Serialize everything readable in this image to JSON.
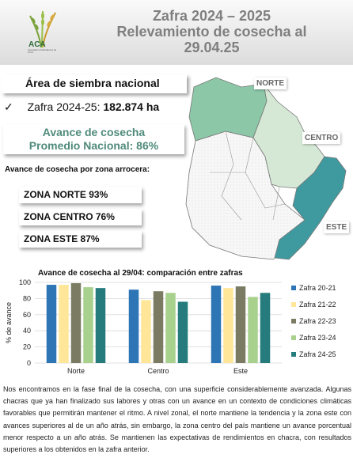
{
  "header": {
    "title_lines": [
      "Zafra 2024 – 2025",
      "Relevamiento de cosecha al",
      "29.04.25"
    ],
    "logo_text": "ACA",
    "logo_sub": "Asociación Cultivadores de Arroz"
  },
  "area": {
    "label": "Área de siembra nacional",
    "check_icon": "✓",
    "zafra_label": "Zafra 2024-25: ",
    "zafra_value": "182.874 ha"
  },
  "avance": {
    "line1": "Avance de cosecha",
    "line2": "Promedio Nacional: 86%"
  },
  "zonas": {
    "title": "Avance de cosecha por zona arrocera:",
    "items": [
      {
        "label": "ZONA NORTE 93%"
      },
      {
        "label": "ZONA CENTRO 76%"
      },
      {
        "label": "ZONA ESTE 87%"
      }
    ]
  },
  "map": {
    "labels": {
      "norte": "NORTE",
      "centro": "CENTRO",
      "este": "ESTE"
    },
    "colors": {
      "norte": "#8cc7a8",
      "centro": "#d5e8d6",
      "este": "#3f9aa0",
      "other": "#f4f4f4",
      "border": "#7a7a7a"
    }
  },
  "chart_data": {
    "type": "bar",
    "title": "Avance de cosecha al 29/04: comparación entre zafras",
    "ylabel": "% de avance",
    "xlabel": "",
    "ylim": [
      0,
      100
    ],
    "yticks": [
      0,
      20,
      40,
      60,
      80,
      100
    ],
    "grid": true,
    "legend_position": "right",
    "categories": [
      "Norte",
      "Centro",
      "Este"
    ],
    "series": [
      {
        "name": "Zafra 20-21",
        "color": "#2e75b6",
        "values": [
          97,
          91,
          96
        ]
      },
      {
        "name": "Zafra 21-22",
        "color": "#ffe699",
        "values": [
          97,
          78,
          93
        ]
      },
      {
        "name": "Zafra 22-23",
        "color": "#7b7b63",
        "values": [
          99,
          89,
          95
        ]
      },
      {
        "name": "Zafra 23-24",
        "color": "#a9d18e",
        "values": [
          94,
          87,
          82
        ]
      },
      {
        "name": "Zafra 24-25",
        "color": "#267c7c",
        "values": [
          93,
          76,
          87
        ]
      }
    ]
  },
  "paragraph": "Nos encontramos en la fase final de la cosecha, con una superficie considerablemente avanzada. Algunas chacras que ya han finalizado sus labores y otras con un avance en un contexto de condiciones climáticas favorables que permitirán mantener el ritmo. A nivel zonal, el norte mantiene la tendencia y la zona este con avances superiores al de un año atrás, sin embargo, la zona centro del país mantiene un avance porcentual menor respecto a un año atrás. Se mantienen las expectativas de rendimientos en chacra, con resultados superiores a los obtenidos en la zafra anterior."
}
